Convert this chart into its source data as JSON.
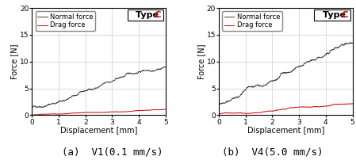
{
  "xlabel": "Displacement [mm]",
  "ylabel": "Force [N]",
  "xlim": [
    0,
    5
  ],
  "ylim": [
    0,
    20
  ],
  "yticks": [
    0,
    5,
    10,
    15,
    20
  ],
  "xticks": [
    0,
    1,
    2,
    3,
    4,
    5
  ],
  "normal_force_color": "#404040",
  "drag_force_color": "#cc0000",
  "legend_labels": [
    "Normal force",
    "Drag force"
  ],
  "caption_left": "(a)  V1(0.1 mm/s)",
  "caption_right": "(b)  V4(5.0 mm/s)",
  "caption_fontsize": 9,
  "label_fontsize": 7,
  "tick_fontsize": 6.5,
  "legend_fontsize": 6,
  "type_c_fontsize": 8,
  "grid_color": "#cccccc",
  "background_color": "#ffffff"
}
